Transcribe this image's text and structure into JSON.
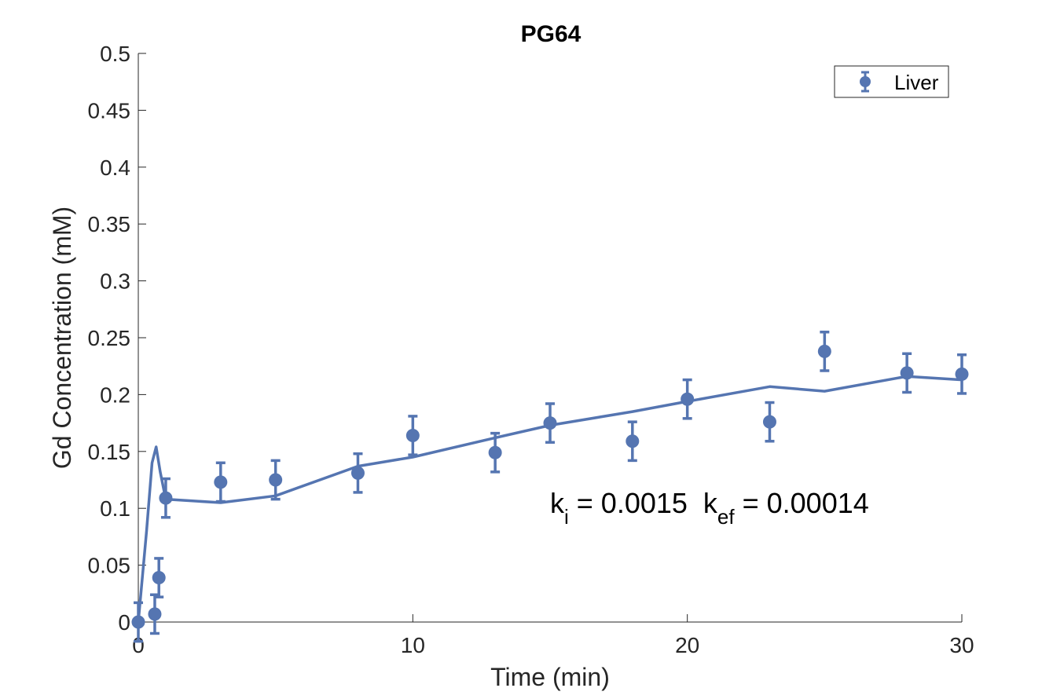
{
  "chart_data": {
    "type": "scatter",
    "title": "PG64",
    "xlabel": "Time (min)",
    "ylabel": "Gd Concentration (mM)",
    "xlim": [
      0,
      30
    ],
    "ylim": [
      0,
      0.5
    ],
    "xticks": [
      0,
      10,
      20,
      30
    ],
    "xtick_labels": [
      "0",
      "10",
      "20",
      "30"
    ],
    "yticks": [
      0,
      0.05,
      0.1,
      0.15,
      0.2,
      0.25,
      0.3,
      0.35,
      0.4,
      0.45,
      0.5
    ],
    "ytick_labels": [
      "0",
      "0.05",
      "0.1",
      "0.15",
      "0.2",
      "0.25",
      "0.3",
      "0.35",
      "0.4",
      "0.45",
      "0.5"
    ],
    "grid": false,
    "legend_position": "top-right",
    "series_color": "#5575b1",
    "series": [
      {
        "name": "Liver",
        "kind": "errorbar-points",
        "x": [
          0,
          0.6,
          0.75,
          1,
          3,
          5,
          8,
          10,
          13,
          15,
          18,
          20,
          23,
          25,
          28,
          30
        ],
        "y": [
          0,
          0.007,
          0.039,
          0.109,
          0.123,
          0.125,
          0.131,
          0.164,
          0.149,
          0.175,
          0.159,
          0.196,
          0.176,
          0.238,
          0.219,
          0.218
        ],
        "err": [
          0.017,
          0.017,
          0.017,
          0.017,
          0.017,
          0.017,
          0.017,
          0.017,
          0.017,
          0.017,
          0.017,
          0.017,
          0.017,
          0.017,
          0.017,
          0.017
        ]
      },
      {
        "kind": "fit-line",
        "x": [
          0,
          0.3,
          0.5,
          0.65,
          0.8,
          1,
          3,
          5,
          8,
          10,
          13,
          15,
          18,
          20,
          23,
          25,
          28,
          30
        ],
        "y": [
          0,
          0.08,
          0.14,
          0.154,
          0.132,
          0.108,
          0.105,
          0.111,
          0.137,
          0.145,
          0.162,
          0.173,
          0.185,
          0.194,
          0.207,
          0.203,
          0.216,
          0.213
        ]
      }
    ],
    "annotation": {
      "k1_main": "k",
      "k1_sub": "i",
      "k1_rest": " = 0.0015  ",
      "k2_main": "k",
      "k2_sub": "ef",
      "k2_rest": " = 0.00014"
    }
  }
}
